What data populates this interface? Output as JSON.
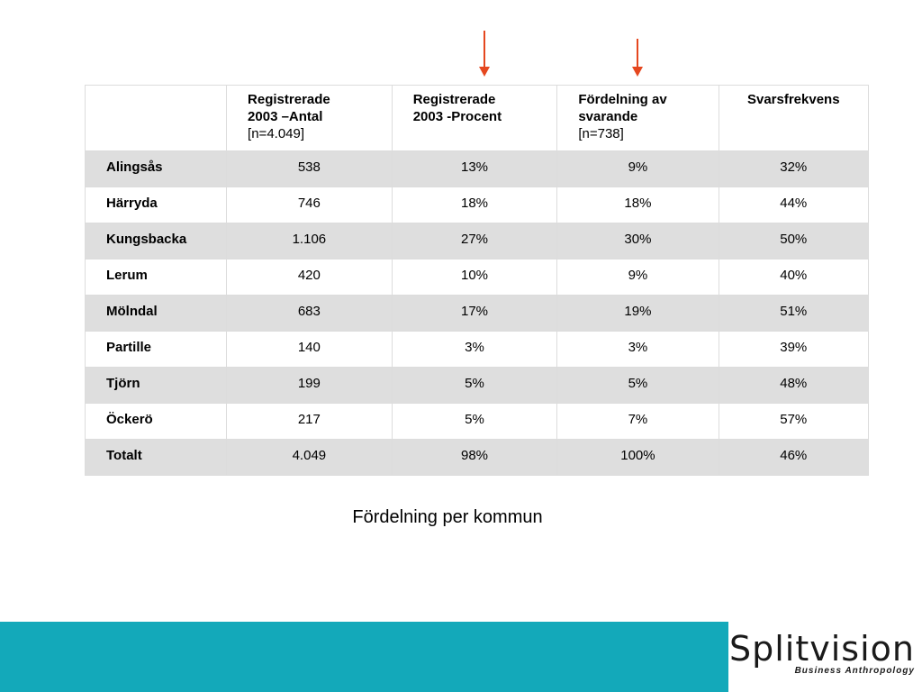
{
  "table": {
    "headers": [
      {
        "bold": "",
        "line2": "",
        "plain": ""
      },
      {
        "bold": "Registrerade",
        "line2": "2003 –Antal",
        "plain": "[n=4.049]"
      },
      {
        "bold": "Registrerade",
        "line2": "2003 -Procent",
        "plain": ""
      },
      {
        "bold": "Fördelning av",
        "line2": "svarande",
        "plain": "[n=738]"
      },
      {
        "bold": "Svarsfrekvens",
        "line2": "",
        "plain": ""
      }
    ],
    "rows": [
      {
        "name": "Alingsås",
        "antal": "538",
        "procent": "13%",
        "fordelning": "9%",
        "svarsfrekvens": "32%"
      },
      {
        "name": "Härryda",
        "antal": "746",
        "procent": "18%",
        "fordelning": "18%",
        "svarsfrekvens": "44%"
      },
      {
        "name": "Kungsbacka",
        "antal": "1.106",
        "procent": "27%",
        "fordelning": "30%",
        "svarsfrekvens": "50%"
      },
      {
        "name": "Lerum",
        "antal": "420",
        "procent": "10%",
        "fordelning": "9%",
        "svarsfrekvens": "40%"
      },
      {
        "name": "Mölndal",
        "antal": "683",
        "procent": "17%",
        "fordelning": "19%",
        "svarsfrekvens": "51%"
      },
      {
        "name": "Partille",
        "antal": "140",
        "procent": "3%",
        "fordelning": "3%",
        "svarsfrekvens": "39%"
      },
      {
        "name": "Tjörn",
        "antal": "199",
        "procent": "5%",
        "fordelning": "5%",
        "svarsfrekvens": "48%"
      },
      {
        "name": "Öckerö",
        "antal": "217",
        "procent": "5%",
        "fordelning": "7%",
        "svarsfrekvens": "57%"
      },
      {
        "name": "Totalt",
        "antal": "4.049",
        "procent": "98%",
        "fordelning": "100%",
        "svarsfrekvens": "46%"
      }
    ]
  },
  "caption": "Fördelning per kommun",
  "logo": {
    "word": "Splitvision",
    "sub": "Business Anthropology"
  },
  "colors": {
    "arrow": "#e5471f",
    "footer": "#13a9ba",
    "row_shade": "#dedede"
  }
}
